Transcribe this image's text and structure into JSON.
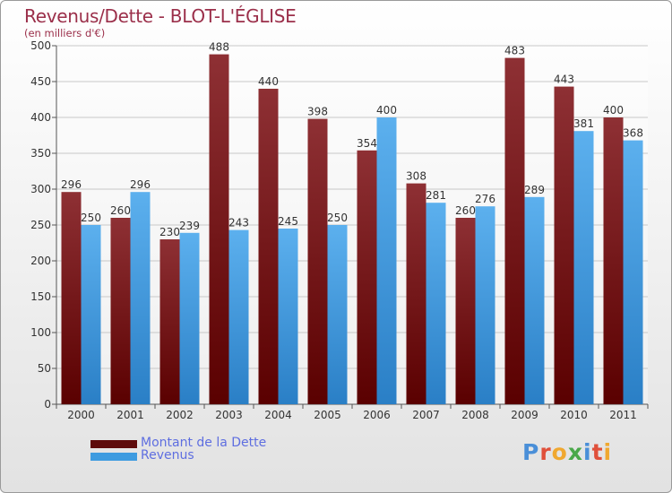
{
  "header": {
    "title": "Revenus/Dette - BLOT-L'ÉGLISE",
    "subtitle": "(en milliers d'€)"
  },
  "logo": {
    "text": "Proxiti",
    "letters": [
      {
        "ch": "P",
        "color": "#4a8fd8"
      },
      {
        "ch": "r",
        "color": "#e0503a"
      },
      {
        "ch": "o",
        "color": "#f0a830"
      },
      {
        "ch": "x",
        "color": "#4aa84a"
      },
      {
        "ch": "i",
        "color": "#4a8fd8"
      },
      {
        "ch": "t",
        "color": "#e0503a"
      },
      {
        "ch": "i",
        "color": "#f0a830"
      }
    ]
  },
  "chart_data": {
    "type": "bar",
    "title": "Revenus/Dette - BLOT-L'ÉGLISE",
    "subtitle": "(en milliers d'€)",
    "categories": [
      "2000",
      "2001",
      "2002",
      "2003",
      "2004",
      "2005",
      "2006",
      "2007",
      "2008",
      "2009",
      "2010",
      "2011"
    ],
    "series": [
      {
        "name": "Montant de la Dette",
        "color": "#7a1a1f",
        "values": [
          296,
          260,
          230,
          488,
          440,
          398,
          354,
          308,
          260,
          483,
          443,
          400
        ]
      },
      {
        "name": "Revenus",
        "color": "#4aa3e8",
        "values": [
          250,
          296,
          239,
          243,
          245,
          250,
          400,
          281,
          276,
          289,
          381,
          368
        ]
      }
    ],
    "yticks": [
      0,
      50,
      100,
      150,
      200,
      250,
      300,
      350,
      400,
      450,
      500
    ],
    "ylim": [
      0,
      500
    ],
    "grid": true,
    "legend_position": "bottom-left"
  }
}
